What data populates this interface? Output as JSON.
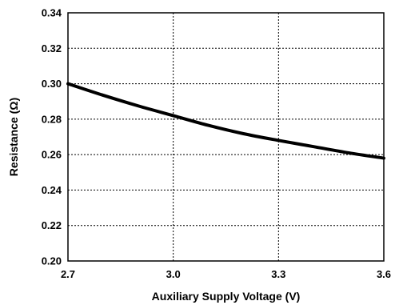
{
  "chart_data": {
    "type": "line",
    "xlabel": "Auxiliary Supply Voltage (V)",
    "ylabel": "Resistance (Ω)",
    "xlim": [
      2.7,
      3.6
    ],
    "ylim": [
      0.2,
      0.34
    ],
    "x_ticks": [
      "2.7",
      "3.0",
      "3.3",
      "3.6"
    ],
    "y_ticks": [
      "0.20",
      "0.22",
      "0.24",
      "0.26",
      "0.28",
      "0.30",
      "0.32",
      "0.34"
    ],
    "grid": true,
    "series": [
      {
        "x": [
          2.7,
          2.8,
          2.9,
          3.0,
          3.1,
          3.2,
          3.3,
          3.4,
          3.5,
          3.6
        ],
        "values": [
          0.3,
          0.2935,
          0.2875,
          0.282,
          0.2765,
          0.2718,
          0.268,
          0.2645,
          0.261,
          0.258
        ]
      }
    ],
    "colors": {
      "line": "#000000",
      "grid": "#000000",
      "frame": "#000000"
    }
  }
}
